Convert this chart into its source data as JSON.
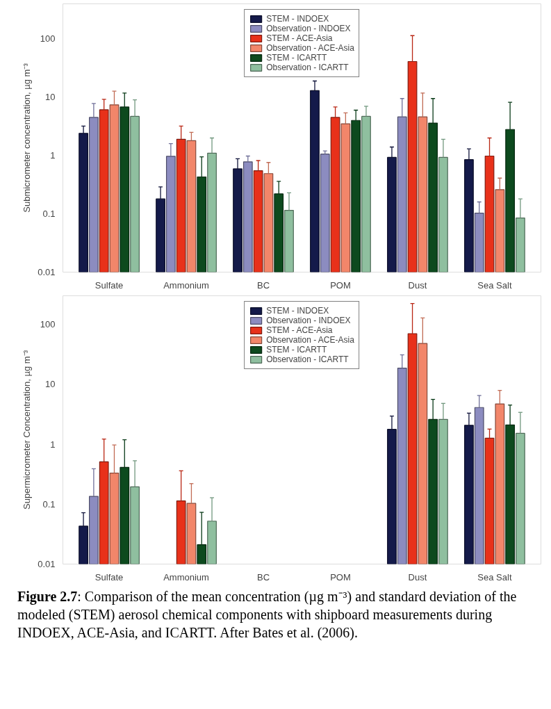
{
  "chart_data": [
    {
      "type": "bar",
      "ylabel": "Submicrometer concentration, µg m⁻³",
      "log": true,
      "ylim": [
        0.01,
        400
      ],
      "yticks": [
        0.01,
        0.1,
        1,
        10,
        100
      ],
      "grid": false,
      "legend": "top",
      "categories": [
        "Sulfate",
        "Ammonium",
        "BC",
        "POM",
        "Dust",
        "Sea Salt"
      ],
      "series": [
        {
          "name": "STEM - INDOEX",
          "color": "#141a4a",
          "values": [
            2.4,
            0.18,
            0.59,
            13,
            0.93,
            0.85
          ],
          "errors": [
            [
              2.4,
              3.2
            ],
            [
              0.18,
              0.29
            ],
            [
              0.59,
              0.88
            ],
            [
              13,
              19
            ],
            [
              0.93,
              1.4
            ],
            [
              0.85,
              1.3
            ]
          ]
        },
        {
          "name": "Observation - INDOEX",
          "color": "#8c8cc0",
          "values": [
            4.5,
            0.97,
            0.78,
            1.06,
            4.6,
            0.103
          ],
          "errors": [
            [
              4.5,
              7.8
            ],
            [
              0.97,
              1.6
            ],
            [
              0.78,
              0.98
            ],
            [
              1.06,
              1.2
            ],
            [
              4.6,
              9.5
            ],
            [
              0.103,
              0.16
            ]
          ]
        },
        {
          "name": "STEM - ACE-Asia",
          "color": "#e8311a",
          "values": [
            6.1,
            1.9,
            0.55,
            4.5,
            41,
            0.98
          ],
          "errors": [
            [
              6.1,
              9.2
            ],
            [
              1.9,
              3.2
            ],
            [
              0.55,
              0.82
            ],
            [
              4.5,
              6.8
            ],
            [
              41,
              114
            ],
            [
              0.98,
              2.0
            ]
          ]
        },
        {
          "name": "Observation - ACE-Asia",
          "color": "#f2866a",
          "values": [
            7.4,
            1.8,
            0.49,
            3.5,
            4.6,
            0.26
          ],
          "errors": [
            [
              7.4,
              12.7
            ],
            [
              1.8,
              2.5
            ],
            [
              0.49,
              0.76
            ],
            [
              3.5,
              5.4
            ],
            [
              4.6,
              11.8
            ],
            [
              0.26,
              0.41
            ]
          ]
        },
        {
          "name": "STEM - ICARTT",
          "color": "#0d4a1e",
          "values": [
            6.8,
            0.43,
            0.22,
            4.0,
            3.6,
            2.8
          ],
          "errors": [
            [
              6.8,
              11.8
            ],
            [
              0.43,
              0.95
            ],
            [
              0.22,
              0.36
            ],
            [
              4.0,
              6.0
            ],
            [
              3.6,
              9.5
            ],
            [
              2.8,
              8.2
            ]
          ]
        },
        {
          "name": "Observation - ICARTT",
          "color": "#8fbf9f",
          "values": [
            4.7,
            1.1,
            0.115,
            4.7,
            0.93,
            0.085
          ],
          "errors": [
            [
              4.7,
              9.0
            ],
            [
              1.1,
              2.0
            ],
            [
              0.115,
              0.23
            ],
            [
              4.7,
              7.0
            ],
            [
              0.93,
              1.9
            ],
            [
              0.085,
              0.18
            ]
          ]
        }
      ]
    },
    {
      "type": "bar",
      "ylabel": "Supermicrometer Concentration, µg m⁻³",
      "log": true,
      "ylim": [
        0.01,
        300
      ],
      "yticks": [
        0.01,
        0.1,
        1,
        10,
        100
      ],
      "grid": false,
      "legend": "top",
      "categories": [
        "Sulfate",
        "Ammonium",
        "BC",
        "POM",
        "Dust",
        "Sea Salt"
      ],
      "series": [
        {
          "name": "STEM - INDOEX",
          "color": "#141a4a",
          "values": [
            0.043,
            null,
            null,
            null,
            1.77,
            2.07
          ],
          "errors": [
            [
              0.043,
              0.072
            ],
            null,
            null,
            null,
            [
              1.77,
              2.95
            ],
            [
              2.07,
              3.3
            ]
          ]
        },
        {
          "name": "Observation - INDOEX",
          "color": "#8c8cc0",
          "values": [
            0.135,
            null,
            null,
            null,
            18.6,
            4.1
          ],
          "errors": [
            [
              0.135,
              0.39
            ],
            null,
            null,
            null,
            [
              18.6,
              31
            ],
            [
              4.1,
              6.5
            ]
          ]
        },
        {
          "name": "STEM - ACE-Asia",
          "color": "#e8311a",
          "values": [
            0.51,
            0.113,
            null,
            null,
            70,
            1.26
          ],
          "errors": [
            [
              0.51,
              1.22
            ],
            [
              0.113,
              0.36
            ],
            null,
            null,
            [
              70,
              223
            ],
            [
              1.26,
              1.79
            ]
          ]
        },
        {
          "name": "Observation - ACE-Asia",
          "color": "#f2866a",
          "values": [
            0.33,
            0.103,
            null,
            null,
            48,
            4.7
          ],
          "errors": [
            [
              0.33,
              0.97
            ],
            [
              0.103,
              0.22
            ],
            null,
            null,
            [
              48,
              128
            ],
            [
              4.7,
              7.9
            ]
          ]
        },
        {
          "name": "STEM - ICARTT",
          "color": "#0d4a1e",
          "values": [
            0.41,
            0.021,
            null,
            null,
            2.6,
            2.1
          ],
          "errors": [
            [
              0.41,
              1.19
            ],
            [
              0.021,
              0.073
            ],
            null,
            null,
            [
              2.6,
              5.6
            ],
            [
              2.1,
              4.5
            ]
          ]
        },
        {
          "name": "Observation - ICARTT",
          "color": "#8fbf9f",
          "values": [
            0.195,
            0.052,
            null,
            null,
            2.6,
            1.52
          ],
          "errors": [
            [
              0.195,
              0.53
            ],
            [
              0.052,
              0.128
            ],
            null,
            null,
            [
              2.6,
              4.8
            ],
            [
              1.52,
              3.4
            ]
          ]
        }
      ],
      "annotations": [
        "Figure 2.7: Comparison of the mean concentration (µg m⁻³) and standard deviation of the modeled (STEM) aerosol chemical components with shipboard measurements during INDOEX, ACE-Asia, and ICARTT. After Bates et al. (2006)."
      ]
    }
  ]
}
